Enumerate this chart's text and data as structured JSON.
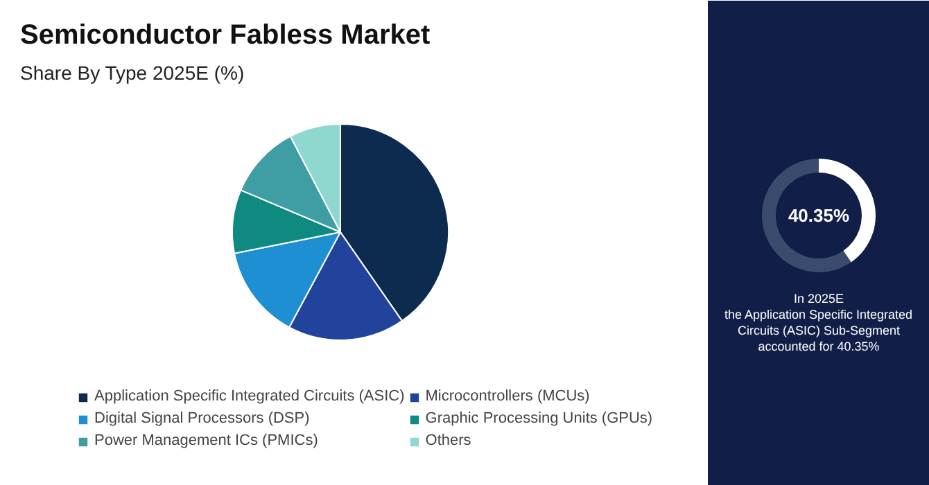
{
  "chart_data": [
    {
      "type": "pie",
      "title": "Semiconductor Fabless Market",
      "subtitle": "Share By Type 2025E (%)",
      "categories": [
        "Application Specific Integrated Circuits (ASIC)",
        "Microcontrollers (MCUs)",
        "Digital Signal Processors (DSP)",
        "Graphic Processing Units (GPUs)",
        "Power Management ICs (PMICs)",
        "Others"
      ],
      "values": [
        40.35,
        17.5,
        14,
        9.5,
        11,
        7.65
      ],
      "colors": [
        "#0d2b4e",
        "#22439b",
        "#1f8fd4",
        "#0f8a80",
        "#3f9ea3",
        "#8fd8cf"
      ],
      "legend": "bottom"
    },
    {
      "type": "donut",
      "categories": [
        null,
        null
      ],
      "values": [
        40.35,
        59.65
      ],
      "colors": [
        "#ffffff",
        "#3b4b6e"
      ],
      "annotations": [
        "40.35%",
        "In 2025E\nthe Application Specific Integrated\nCircuits (ASIC) Sub-Segment\naccounted for 40.35%"
      ]
    }
  ]
}
